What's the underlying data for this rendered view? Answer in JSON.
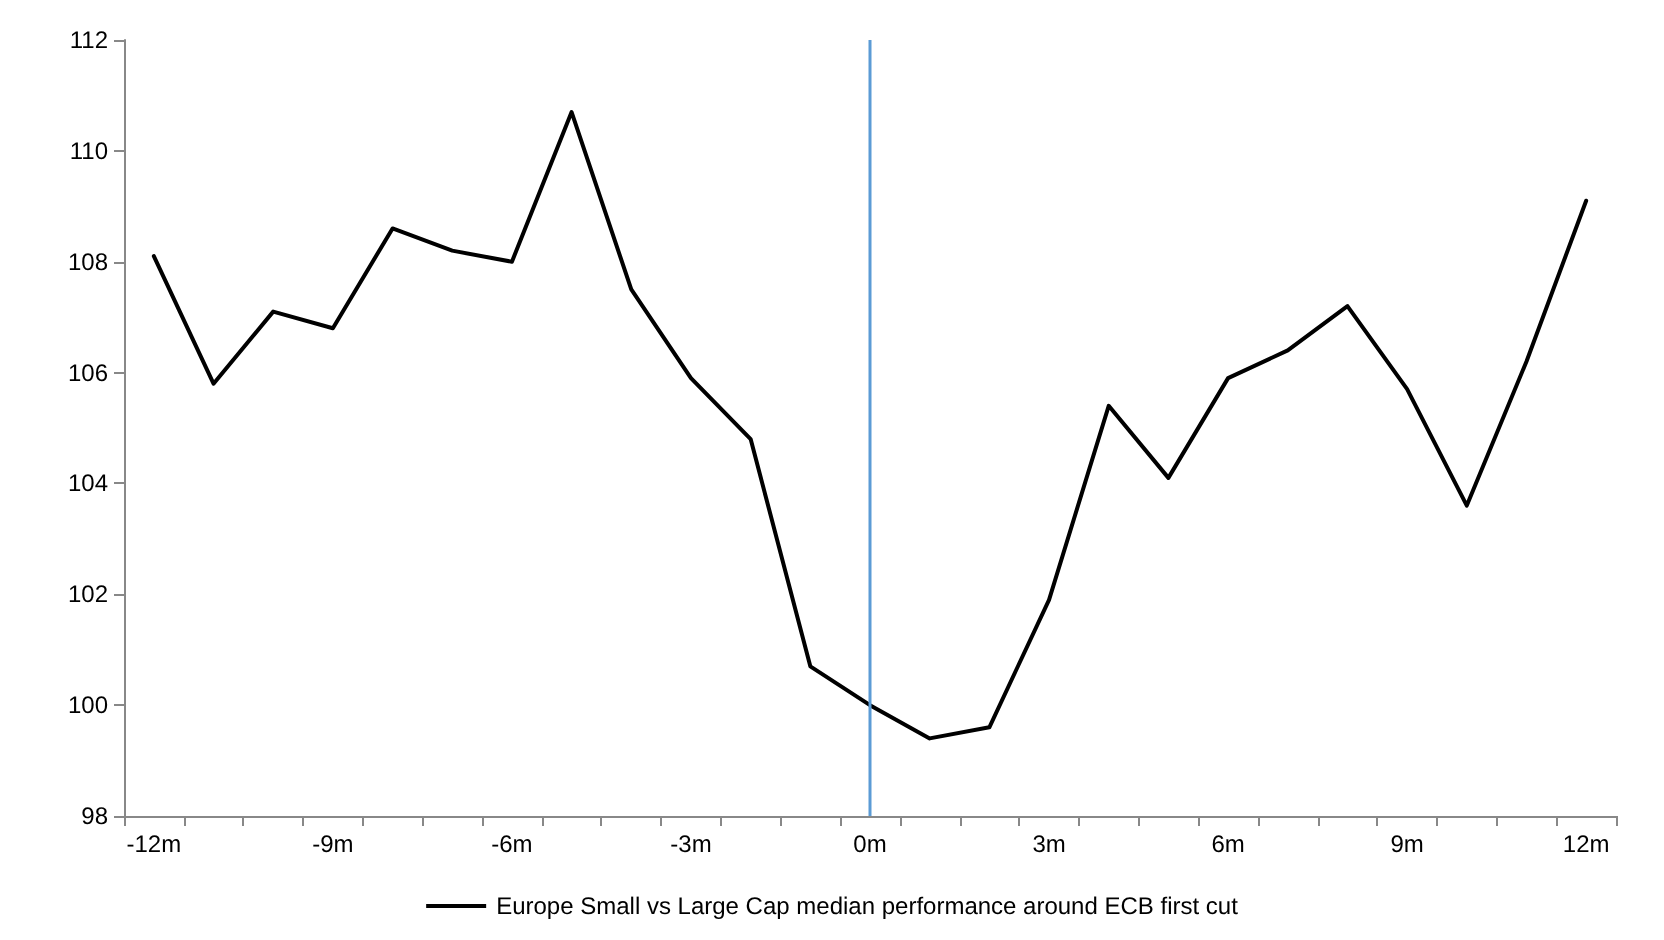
{
  "chart_data": {
    "type": "line",
    "categories": [
      "-12m",
      null,
      null,
      "-9m",
      null,
      null,
      "-6m",
      null,
      null,
      "-3m",
      null,
      null,
      "0m",
      null,
      null,
      "3m",
      null,
      null,
      "6m",
      null,
      null,
      "9m",
      null,
      null,
      "12m"
    ],
    "series": [
      {
        "name": "Europe Small vs Large Cap median performance around ECB first cut",
        "color": "#000000",
        "values": [
          108.1,
          105.8,
          107.1,
          106.8,
          108.6,
          108.2,
          108.0,
          110.7,
          107.5,
          105.9,
          104.8,
          100.7,
          100.0,
          99.4,
          99.6,
          101.9,
          105.4,
          104.1,
          105.9,
          106.4,
          107.2,
          105.7,
          103.6,
          106.2,
          109.1
        ]
      }
    ],
    "ylim": [
      98,
      112
    ],
    "yticks": [
      98,
      100,
      102,
      104,
      106,
      108,
      110,
      112
    ],
    "ref_lines": [
      {
        "axis": "x",
        "value": "0m",
        "color": "#5b9bd5"
      }
    ],
    "grid": false,
    "legend": "bottom",
    "marker": "none",
    "line_style": "solid"
  }
}
